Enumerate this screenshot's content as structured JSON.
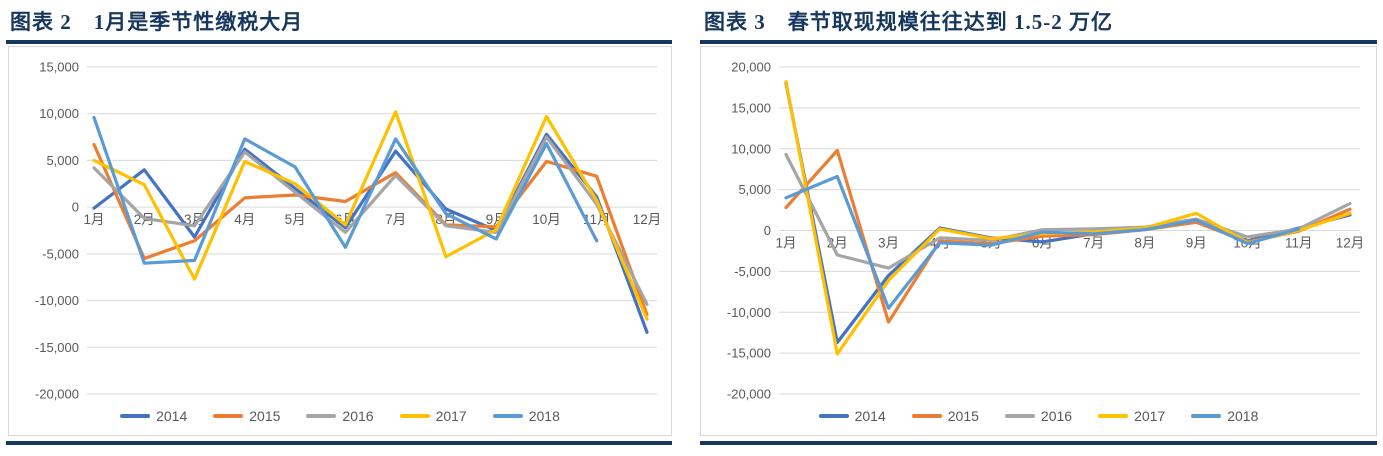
{
  "page": {
    "accent_color": "#17375E",
    "grid_color": "#D9D9D9",
    "axis_text_color": "#595959"
  },
  "charts": [
    {
      "title_prefix": "图表 2",
      "title": "1月是季节性缴税大月",
      "chart_data": {
        "type": "line",
        "categories": [
          "1月",
          "2月",
          "3月",
          "4月",
          "5月",
          "6月",
          "7月",
          "8月",
          "9月",
          "10月",
          "11月",
          "12月"
        ],
        "series": [
          {
            "name": "2014",
            "color": "#4472C4",
            "values": [
              -100,
              4000,
              -3200,
              6200,
              2000,
              -2200,
              6000,
              -200,
              -2500,
              7800,
              1100,
              -13400
            ]
          },
          {
            "name": "2015",
            "color": "#ED7D31",
            "values": [
              6700,
              -5500,
              -3600,
              1000,
              1300,
              600,
              3700,
              -1900,
              -2100,
              4900,
              3300,
              -11500
            ]
          },
          {
            "name": "2016",
            "color": "#A5A5A5",
            "values": [
              4200,
              -1200,
              -2000,
              5900,
              1600,
              -2700,
              3400,
              -2000,
              -2700,
              7500,
              300,
              -10400
            ]
          },
          {
            "name": "2017",
            "color": "#FFC000",
            "values": [
              5000,
              2400,
              -7700,
              4900,
              2500,
              -1900,
              10200,
              -5300,
              -2400,
              9700,
              700,
              -12000
            ]
          },
          {
            "name": "2018",
            "color": "#5B9BD5",
            "values": [
              9600,
              -6000,
              -5700,
              7300,
              4300,
              -4300,
              7300,
              -700,
              -3400,
              6800,
              -3600,
              null
            ]
          }
        ],
        "ylim": [
          -20000,
          15000
        ],
        "ytick_step": 5000,
        "grid": true,
        "legend_position": "bottom"
      }
    },
    {
      "title_prefix": "图表 3",
      "title": "春节取现规模往往达到 1.5-2 万亿",
      "chart_data": {
        "type": "line",
        "categories": [
          "1月",
          "2月",
          "3月",
          "4月",
          "5月",
          "6月",
          "7月",
          "8月",
          "9月",
          "10月",
          "11月",
          "12月"
        ],
        "series": [
          {
            "name": "2014",
            "color": "#4472C4",
            "values": [
              18000,
              -13700,
              -5500,
              300,
              -900,
              -1400,
              -400,
              200,
              1200,
              -1300,
              300,
              1900
            ]
          },
          {
            "name": "2015",
            "color": "#ED7D31",
            "values": [
              2800,
              9800,
              -11200,
              -1300,
              -1600,
              -700,
              -500,
              100,
              1000,
              -1400,
              -100,
              2600
            ]
          },
          {
            "name": "2016",
            "color": "#A5A5A5",
            "values": [
              9300,
              -3000,
              -4600,
              -900,
              -1200,
              100,
              200,
              400,
              1400,
              -800,
              200,
              3300
            ]
          },
          {
            "name": "2017",
            "color": "#FFC000",
            "values": [
              18200,
              -15100,
              -6100,
              200,
              -1000,
              -400,
              -200,
              300,
              2100,
              -1500,
              0,
              2100
            ]
          },
          {
            "name": "2018",
            "color": "#5B9BD5",
            "values": [
              4000,
              6600,
              -9500,
              -1500,
              -1800,
              -200,
              -400,
              100,
              1300,
              -1600,
              200,
              null
            ]
          }
        ],
        "ylim": [
          -20000,
          20000
        ],
        "ytick_step": 5000,
        "grid": true,
        "legend_position": "bottom"
      }
    }
  ]
}
